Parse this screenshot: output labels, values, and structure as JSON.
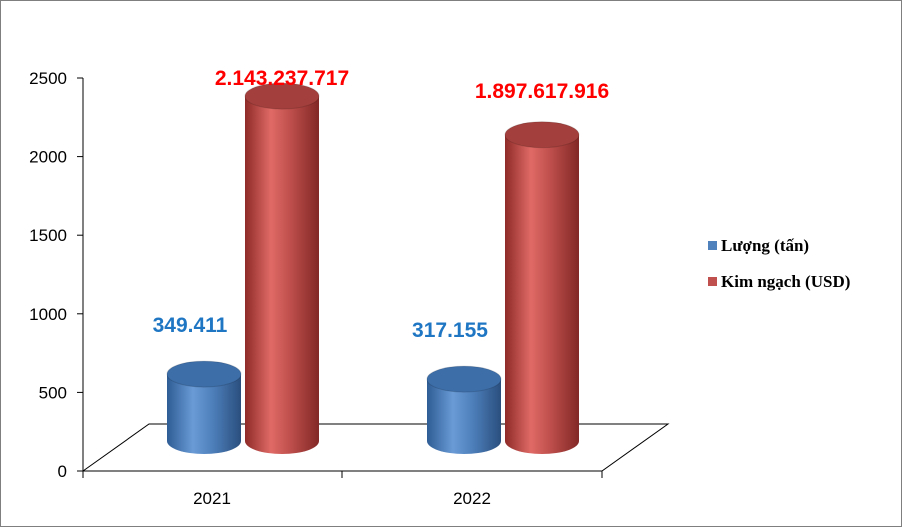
{
  "chart_data": {
    "type": "bar",
    "style": "3d-cylinder",
    "categories": [
      "2021",
      "2022"
    ],
    "series": [
      {
        "name": "Lượng (tấn)",
        "values": [
          349.411,
          317.155
        ],
        "labels": [
          "349.411",
          "317.155"
        ],
        "color": "#4f81bd",
        "label_color": "#1f77c4"
      },
      {
        "name": "Kim ngạch (USD)",
        "values": [
          2143.237717,
          1897.617916
        ],
        "labels": [
          "2.143.237.717",
          "1.897.617.916"
        ],
        "color": "#c0504d",
        "label_color": "#ff0000"
      }
    ],
    "ylim": [
      0,
      2500
    ],
    "yticks": [
      "0",
      "500",
      "1000",
      "1500",
      "2000",
      "2500"
    ],
    "grid": false,
    "legend_position": "right"
  }
}
